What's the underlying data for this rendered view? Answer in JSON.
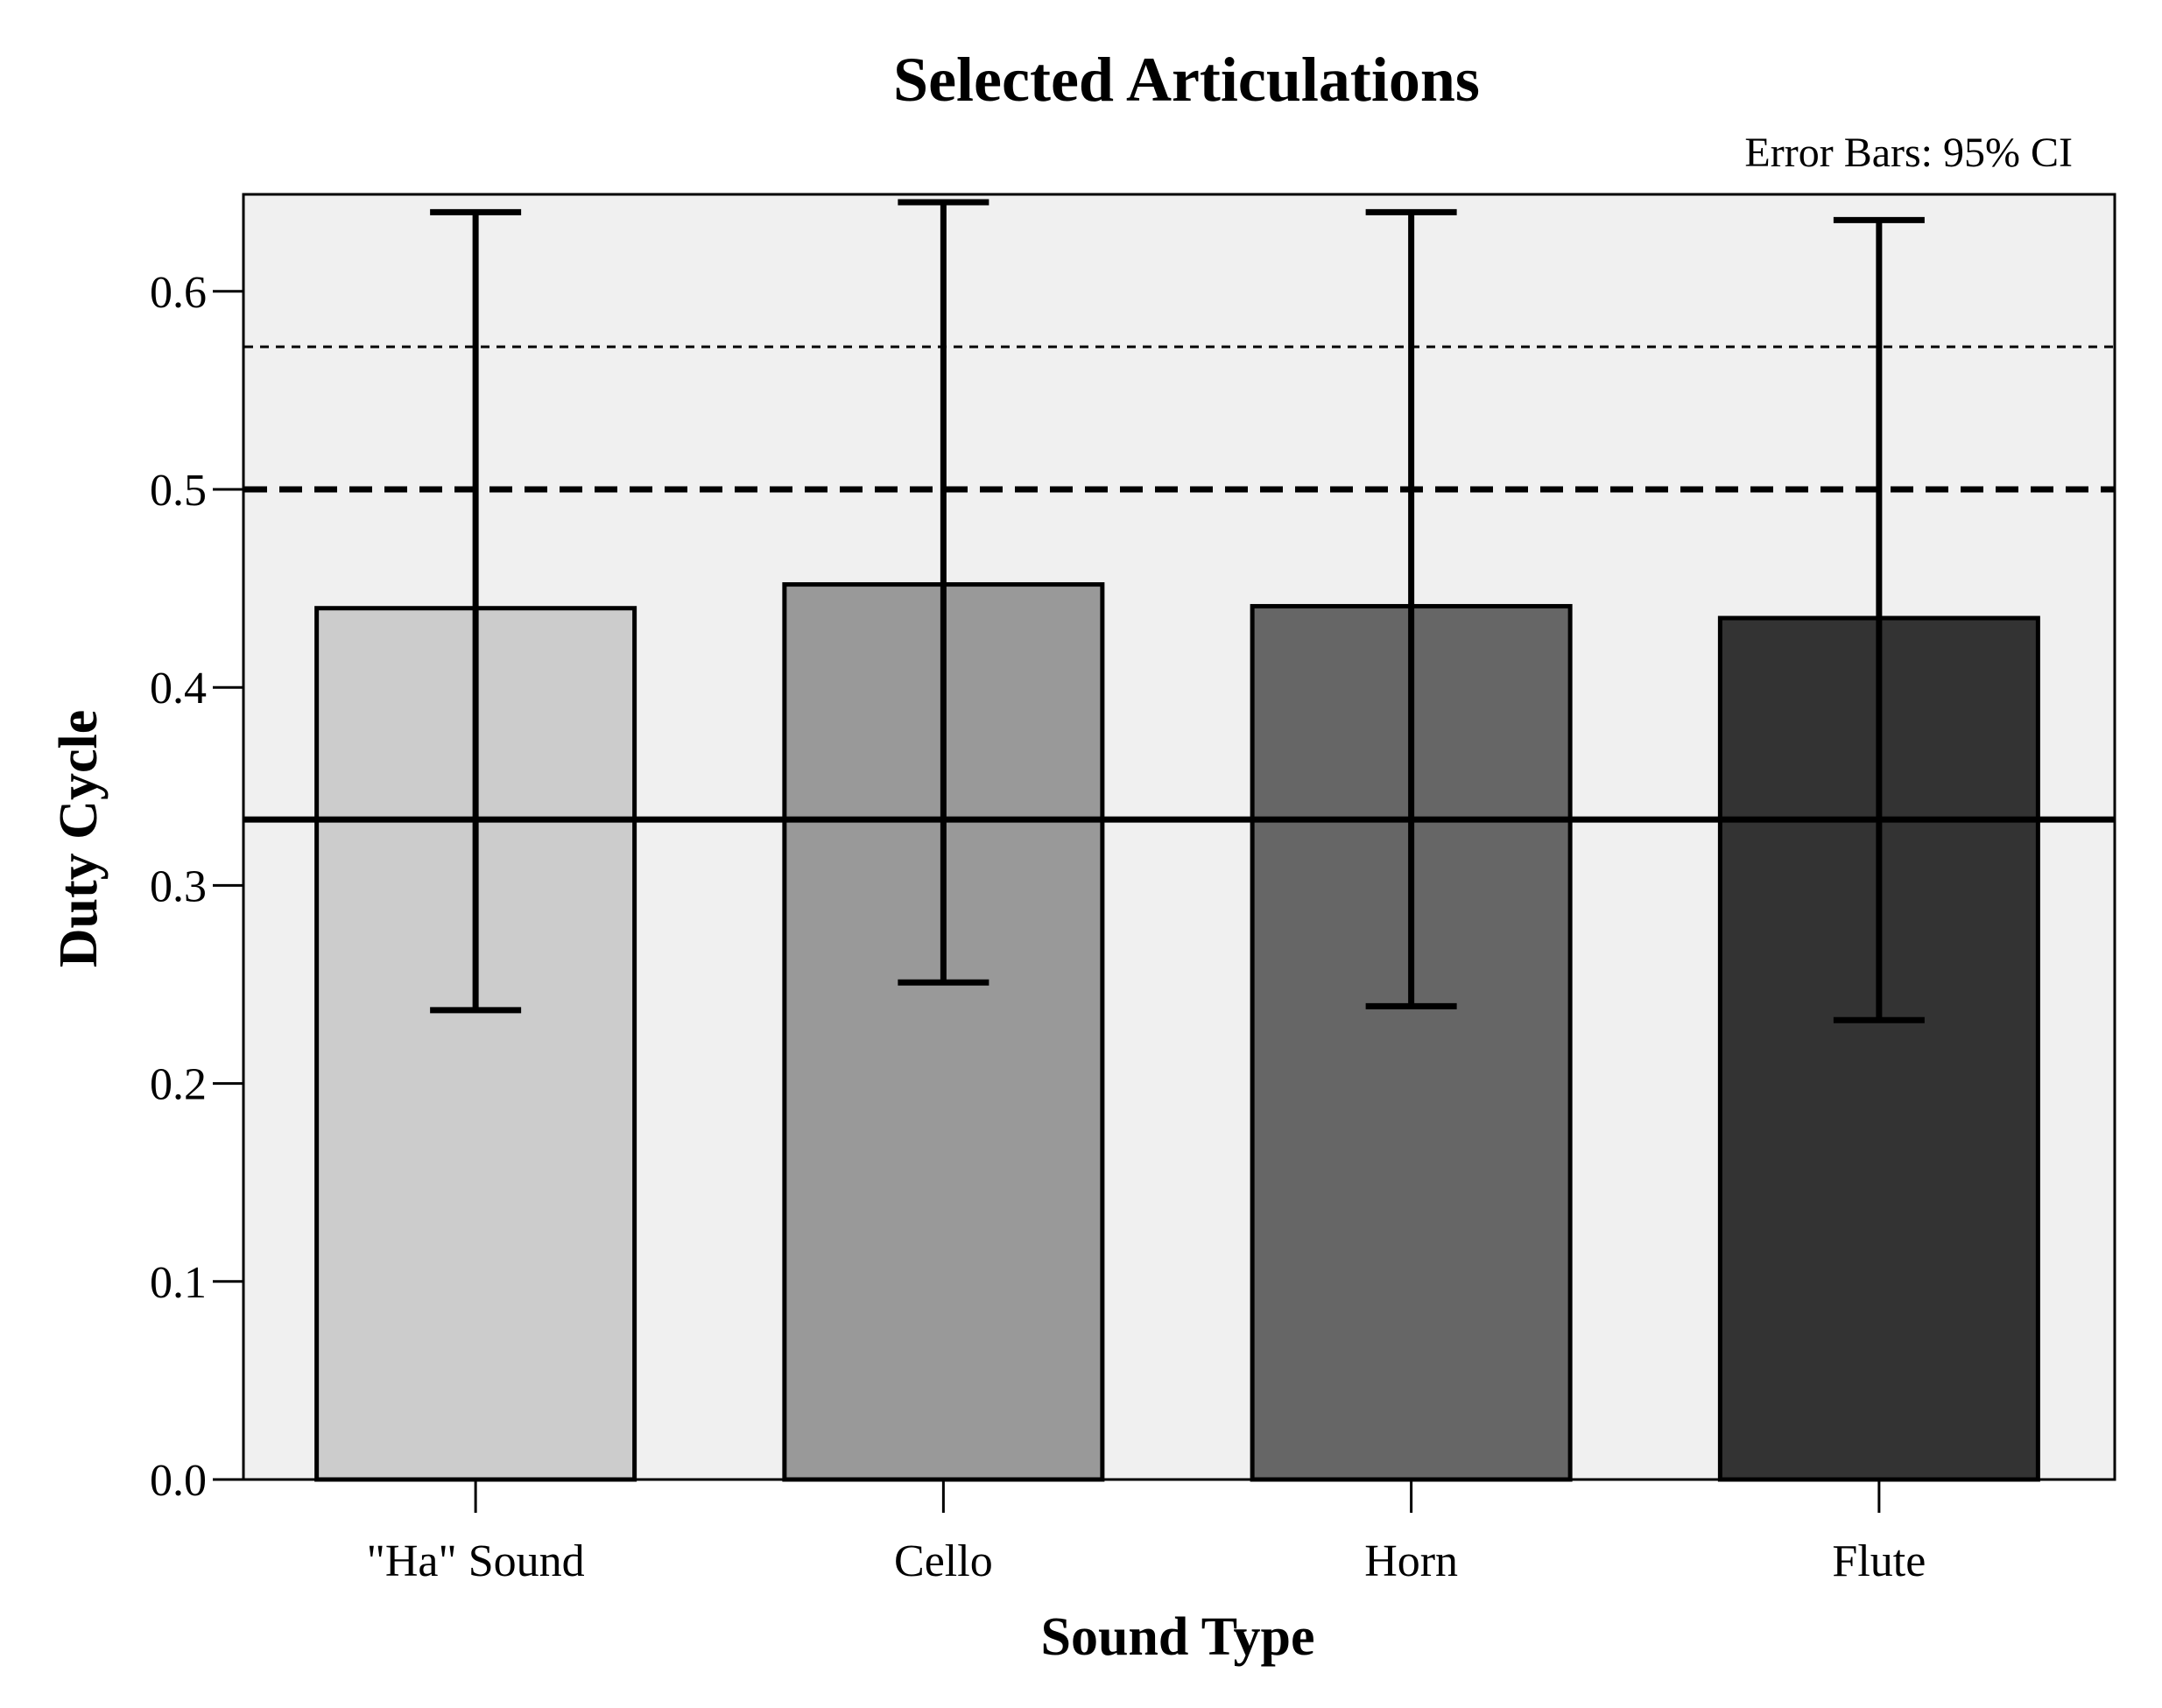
{
  "chart_data": {
    "type": "bar",
    "title": "Selected Articulations",
    "note": "Error Bars: 95% CI",
    "xlabel": "Sound Type",
    "ylabel": "Duty Cycle",
    "categories": [
      "\"Ha\" Sound",
      "Cello",
      "Horn",
      "Flute"
    ],
    "values": [
      0.44,
      0.452,
      0.441,
      0.435
    ],
    "ci_lower": [
      0.237,
      0.251,
      0.239,
      0.232
    ],
    "ci_upper": [
      0.64,
      0.645,
      0.64,
      0.636
    ],
    "bar_colors": [
      "#cccccc",
      "#999999",
      "#666666",
      "#333333"
    ],
    "ylim": [
      0,
      0.65
    ],
    "yticks": [
      "0.0",
      "0.1",
      "0.2",
      "0.3",
      "0.4",
      "0.5",
      "0.6"
    ],
    "reference_lines": [
      {
        "value": 0.3333,
        "style": "solid"
      },
      {
        "value": 0.5,
        "style": "dashed"
      },
      {
        "value": 0.572,
        "style": "dotted"
      }
    ],
    "plot_background": "#f0f0f0",
    "grid": false
  }
}
